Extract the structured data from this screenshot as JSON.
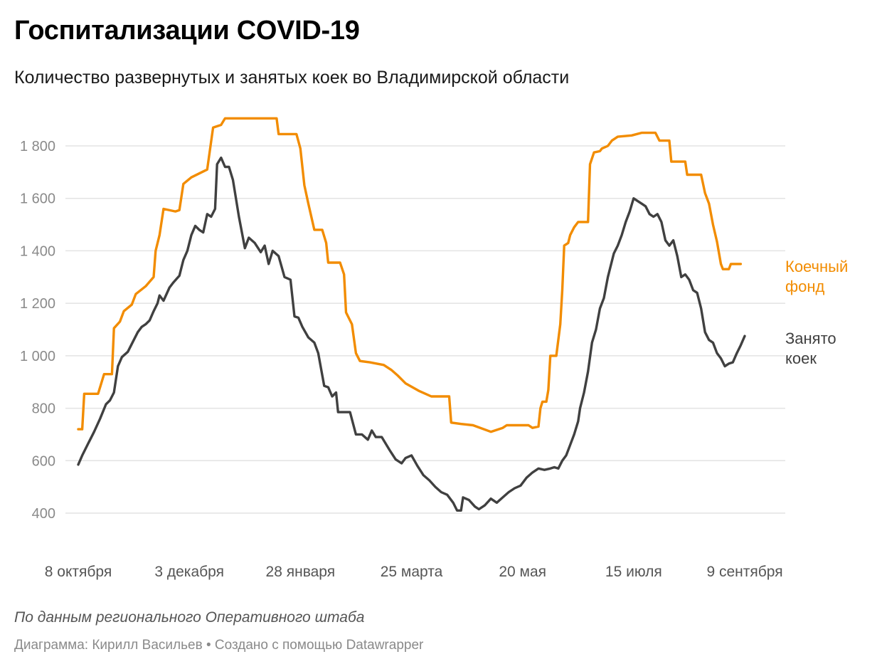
{
  "header": {
    "title": "Госпитализации COVID-19",
    "subtitle": "Количество развернутых и занятых коек во Владимирской области"
  },
  "footer": {
    "source": "По данным регионального Оперативного штаба",
    "credit": "Диаграмма: Кирилл Васильев • Создано с помощью Datawrapper"
  },
  "colors": {
    "beds": "#f28c00",
    "occupied": "#404040",
    "grid": "#e3e3e3",
    "axis_text": "#8a8a8a"
  },
  "chart_data": {
    "type": "line",
    "title": "Госпитализации COVID-19",
    "subtitle": "Количество развернутых и занятых коек во Владимирской области",
    "x_start": "2020-10-08",
    "x_end": "2021-09-28",
    "ylim": [
      300,
      1950
    ],
    "yticks": [
      400,
      600,
      800,
      1000,
      1200,
      1400,
      1600,
      1800
    ],
    "ytick_labels": [
      "400",
      "600",
      "800",
      "1 000",
      "1 200",
      "1 400",
      "1 600",
      "1 800"
    ],
    "xticks": [
      {
        "date": "2020-10-08",
        "label": "8 октября"
      },
      {
        "date": "2020-12-03",
        "label": "3 декабря"
      },
      {
        "date": "2021-01-28",
        "label": "28 января"
      },
      {
        "date": "2021-03-25",
        "label": "25 марта"
      },
      {
        "date": "2021-05-20",
        "label": "20 мая"
      },
      {
        "date": "2021-07-15",
        "label": "15 июля"
      },
      {
        "date": "2021-09-09",
        "label": "9 сентября"
      }
    ],
    "grid": true,
    "legend": "direct labels at right end of lines",
    "series": [
      {
        "name": "Коечный фонд",
        "label_lines": [
          "Коечный",
          "фонд"
        ],
        "color": "#f28c00",
        "points": [
          [
            "2020-10-08",
            720
          ],
          [
            "2020-10-10",
            720
          ],
          [
            "2020-10-11",
            855
          ],
          [
            "2020-10-18",
            855
          ],
          [
            "2020-10-19",
            880
          ],
          [
            "2020-10-21",
            930
          ],
          [
            "2020-10-25",
            930
          ],
          [
            "2020-10-26",
            1105
          ],
          [
            "2020-10-29",
            1130
          ],
          [
            "2020-10-31",
            1170
          ],
          [
            "2020-11-04",
            1195
          ],
          [
            "2020-11-06",
            1235
          ],
          [
            "2020-11-11",
            1265
          ],
          [
            "2020-11-15",
            1300
          ],
          [
            "2020-11-16",
            1400
          ],
          [
            "2020-11-18",
            1460
          ],
          [
            "2020-11-20",
            1560
          ],
          [
            "2020-11-26",
            1550
          ],
          [
            "2020-11-28",
            1555
          ],
          [
            "2020-11-30",
            1655
          ],
          [
            "2020-12-04",
            1680
          ],
          [
            "2020-12-12",
            1710
          ],
          [
            "2020-12-15",
            1870
          ],
          [
            "2020-12-19",
            1880
          ],
          [
            "2020-12-21",
            1905
          ],
          [
            "2021-01-16",
            1905
          ],
          [
            "2021-01-17",
            1845
          ],
          [
            "2021-01-26",
            1845
          ],
          [
            "2021-01-28",
            1790
          ],
          [
            "2021-01-30",
            1650
          ],
          [
            "2021-02-01",
            1580
          ],
          [
            "2021-02-04",
            1480
          ],
          [
            "2021-02-08",
            1480
          ],
          [
            "2021-02-10",
            1430
          ],
          [
            "2021-02-11",
            1355
          ],
          [
            "2021-02-17",
            1355
          ],
          [
            "2021-02-19",
            1310
          ],
          [
            "2021-02-20",
            1165
          ],
          [
            "2021-02-23",
            1120
          ],
          [
            "2021-02-25",
            1010
          ],
          [
            "2021-02-27",
            980
          ],
          [
            "2021-03-04",
            975
          ],
          [
            "2021-03-11",
            965
          ],
          [
            "2021-03-15",
            945
          ],
          [
            "2021-03-18",
            925
          ],
          [
            "2021-03-22",
            895
          ],
          [
            "2021-03-29",
            865
          ],
          [
            "2021-04-04",
            845
          ],
          [
            "2021-04-13",
            845
          ],
          [
            "2021-04-14",
            745
          ],
          [
            "2021-04-19",
            740
          ],
          [
            "2021-04-25",
            735
          ],
          [
            "2021-05-04",
            710
          ],
          [
            "2021-05-10",
            725
          ],
          [
            "2021-05-12",
            735
          ],
          [
            "2021-05-23",
            735
          ],
          [
            "2021-05-25",
            725
          ],
          [
            "2021-05-28",
            730
          ],
          [
            "2021-05-29",
            800
          ],
          [
            "2021-05-30",
            825
          ],
          [
            "2021-06-01",
            825
          ],
          [
            "2021-06-02",
            870
          ],
          [
            "2021-06-03",
            1000
          ],
          [
            "2021-06-06",
            1000
          ],
          [
            "2021-06-08",
            1120
          ],
          [
            "2021-06-09",
            1250
          ],
          [
            "2021-06-10",
            1420
          ],
          [
            "2021-06-12",
            1430
          ],
          [
            "2021-06-13",
            1460
          ],
          [
            "2021-06-15",
            1490
          ],
          [
            "2021-06-17",
            1510
          ],
          [
            "2021-06-22",
            1510
          ],
          [
            "2021-06-23",
            1730
          ],
          [
            "2021-06-25",
            1775
          ],
          [
            "2021-06-28",
            1780
          ],
          [
            "2021-06-29",
            1790
          ],
          [
            "2021-07-02",
            1800
          ],
          [
            "2021-07-04",
            1820
          ],
          [
            "2021-07-07",
            1835
          ],
          [
            "2021-07-14",
            1840
          ],
          [
            "2021-07-19",
            1850
          ],
          [
            "2021-07-26",
            1850
          ],
          [
            "2021-07-28",
            1820
          ],
          [
            "2021-08-02",
            1820
          ],
          [
            "2021-08-03",
            1740
          ],
          [
            "2021-08-10",
            1740
          ],
          [
            "2021-08-11",
            1690
          ],
          [
            "2021-08-18",
            1690
          ],
          [
            "2021-08-20",
            1620
          ],
          [
            "2021-08-22",
            1580
          ],
          [
            "2021-08-24",
            1500
          ],
          [
            "2021-08-26",
            1435
          ],
          [
            "2021-08-28",
            1350
          ],
          [
            "2021-08-29",
            1330
          ],
          [
            "2021-09-01",
            1330
          ],
          [
            "2021-09-02",
            1350
          ],
          [
            "2021-09-07",
            1350
          ]
        ]
      },
      {
        "name": "Занято коек",
        "label_lines": [
          "Занято",
          "коек"
        ],
        "color": "#404040",
        "points": [
          [
            "2020-10-08",
            585
          ],
          [
            "2020-10-10",
            620
          ],
          [
            "2020-10-13",
            665
          ],
          [
            "2020-10-16",
            710
          ],
          [
            "2020-10-19",
            760
          ],
          [
            "2020-10-22",
            815
          ],
          [
            "2020-10-24",
            830
          ],
          [
            "2020-10-26",
            860
          ],
          [
            "2020-10-28",
            960
          ],
          [
            "2020-10-30",
            995
          ],
          [
            "2020-11-02",
            1015
          ],
          [
            "2020-11-05",
            1060
          ],
          [
            "2020-11-07",
            1090
          ],
          [
            "2020-11-09",
            1110
          ],
          [
            "2020-11-11",
            1120
          ],
          [
            "2020-11-13",
            1135
          ],
          [
            "2020-11-15",
            1170
          ],
          [
            "2020-11-17",
            1200
          ],
          [
            "2020-11-18",
            1230
          ],
          [
            "2020-11-20",
            1210
          ],
          [
            "2020-11-23",
            1260
          ],
          [
            "2020-11-25",
            1280
          ],
          [
            "2020-11-28",
            1305
          ],
          [
            "2020-11-30",
            1365
          ],
          [
            "2020-12-02",
            1400
          ],
          [
            "2020-12-04",
            1460
          ],
          [
            "2020-12-06",
            1495
          ],
          [
            "2020-12-08",
            1480
          ],
          [
            "2020-12-10",
            1470
          ],
          [
            "2020-12-12",
            1540
          ],
          [
            "2020-12-14",
            1530
          ],
          [
            "2020-12-16",
            1560
          ],
          [
            "2020-12-17",
            1730
          ],
          [
            "2020-12-19",
            1755
          ],
          [
            "2020-12-21",
            1720
          ],
          [
            "2020-12-23",
            1720
          ],
          [
            "2020-12-25",
            1670
          ],
          [
            "2020-12-28",
            1530
          ],
          [
            "2020-12-31",
            1410
          ],
          [
            "2021-01-02",
            1450
          ],
          [
            "2021-01-05",
            1430
          ],
          [
            "2021-01-08",
            1395
          ],
          [
            "2021-01-10",
            1420
          ],
          [
            "2021-01-12",
            1350
          ],
          [
            "2021-01-14",
            1400
          ],
          [
            "2021-01-17",
            1380
          ],
          [
            "2021-01-20",
            1300
          ],
          [
            "2021-01-23",
            1290
          ],
          [
            "2021-01-25",
            1150
          ],
          [
            "2021-01-27",
            1145
          ],
          [
            "2021-01-29",
            1110
          ],
          [
            "2021-02-01",
            1070
          ],
          [
            "2021-02-04",
            1050
          ],
          [
            "2021-02-06",
            1010
          ],
          [
            "2021-02-09",
            885
          ],
          [
            "2021-02-11",
            880
          ],
          [
            "2021-02-13",
            845
          ],
          [
            "2021-02-15",
            860
          ],
          [
            "2021-02-16",
            785
          ],
          [
            "2021-02-22",
            785
          ],
          [
            "2021-02-25",
            700
          ],
          [
            "2021-02-28",
            700
          ],
          [
            "2021-03-03",
            680
          ],
          [
            "2021-03-05",
            715
          ],
          [
            "2021-03-07",
            690
          ],
          [
            "2021-03-10",
            690
          ],
          [
            "2021-03-14",
            640
          ],
          [
            "2021-03-17",
            605
          ],
          [
            "2021-03-20",
            590
          ],
          [
            "2021-03-22",
            610
          ],
          [
            "2021-03-25",
            620
          ],
          [
            "2021-03-28",
            580
          ],
          [
            "2021-03-31",
            545
          ],
          [
            "2021-04-03",
            525
          ],
          [
            "2021-04-06",
            500
          ],
          [
            "2021-04-09",
            480
          ],
          [
            "2021-04-12",
            470
          ],
          [
            "2021-04-15",
            440
          ],
          [
            "2021-04-17",
            410
          ],
          [
            "2021-04-19",
            410
          ],
          [
            "2021-04-20",
            460
          ],
          [
            "2021-04-23",
            450
          ],
          [
            "2021-04-26",
            425
          ],
          [
            "2021-04-28",
            415
          ],
          [
            "2021-05-01",
            430
          ],
          [
            "2021-05-04",
            455
          ],
          [
            "2021-05-07",
            440
          ],
          [
            "2021-05-10",
            460
          ],
          [
            "2021-05-13",
            480
          ],
          [
            "2021-05-16",
            495
          ],
          [
            "2021-05-19",
            505
          ],
          [
            "2021-05-22",
            535
          ],
          [
            "2021-05-25",
            555
          ],
          [
            "2021-05-28",
            570
          ],
          [
            "2021-05-31",
            565
          ],
          [
            "2021-06-03",
            570
          ],
          [
            "2021-06-05",
            575
          ],
          [
            "2021-06-07",
            570
          ],
          [
            "2021-06-09",
            600
          ],
          [
            "2021-06-11",
            620
          ],
          [
            "2021-06-13",
            660
          ],
          [
            "2021-06-15",
            700
          ],
          [
            "2021-06-17",
            750
          ],
          [
            "2021-06-18",
            800
          ],
          [
            "2021-06-20",
            860
          ],
          [
            "2021-06-22",
            940
          ],
          [
            "2021-06-24",
            1050
          ],
          [
            "2021-06-26",
            1100
          ],
          [
            "2021-06-28",
            1180
          ],
          [
            "2021-06-30",
            1220
          ],
          [
            "2021-07-02",
            1300
          ],
          [
            "2021-07-05",
            1390
          ],
          [
            "2021-07-07",
            1420
          ],
          [
            "2021-07-09",
            1460
          ],
          [
            "2021-07-11",
            1510
          ],
          [
            "2021-07-13",
            1550
          ],
          [
            "2021-07-15",
            1600
          ],
          [
            "2021-07-17",
            1590
          ],
          [
            "2021-07-19",
            1580
          ],
          [
            "2021-07-21",
            1570
          ],
          [
            "2021-07-23",
            1540
          ],
          [
            "2021-07-25",
            1530
          ],
          [
            "2021-07-27",
            1540
          ],
          [
            "2021-07-29",
            1510
          ],
          [
            "2021-07-31",
            1440
          ],
          [
            "2021-08-02",
            1420
          ],
          [
            "2021-08-04",
            1440
          ],
          [
            "2021-08-06",
            1380
          ],
          [
            "2021-08-08",
            1300
          ],
          [
            "2021-08-10",
            1310
          ],
          [
            "2021-08-12",
            1290
          ],
          [
            "2021-08-14",
            1250
          ],
          [
            "2021-08-16",
            1240
          ],
          [
            "2021-08-18",
            1180
          ],
          [
            "2021-08-20",
            1090
          ],
          [
            "2021-08-22",
            1060
          ],
          [
            "2021-08-24",
            1050
          ],
          [
            "2021-08-26",
            1010
          ],
          [
            "2021-08-28",
            990
          ],
          [
            "2021-08-30",
            960
          ],
          [
            "2021-09-01",
            970
          ],
          [
            "2021-09-03",
            975
          ],
          [
            "2021-09-05",
            1010
          ],
          [
            "2021-09-07",
            1040
          ],
          [
            "2021-09-09",
            1075
          ]
        ]
      }
    ]
  }
}
